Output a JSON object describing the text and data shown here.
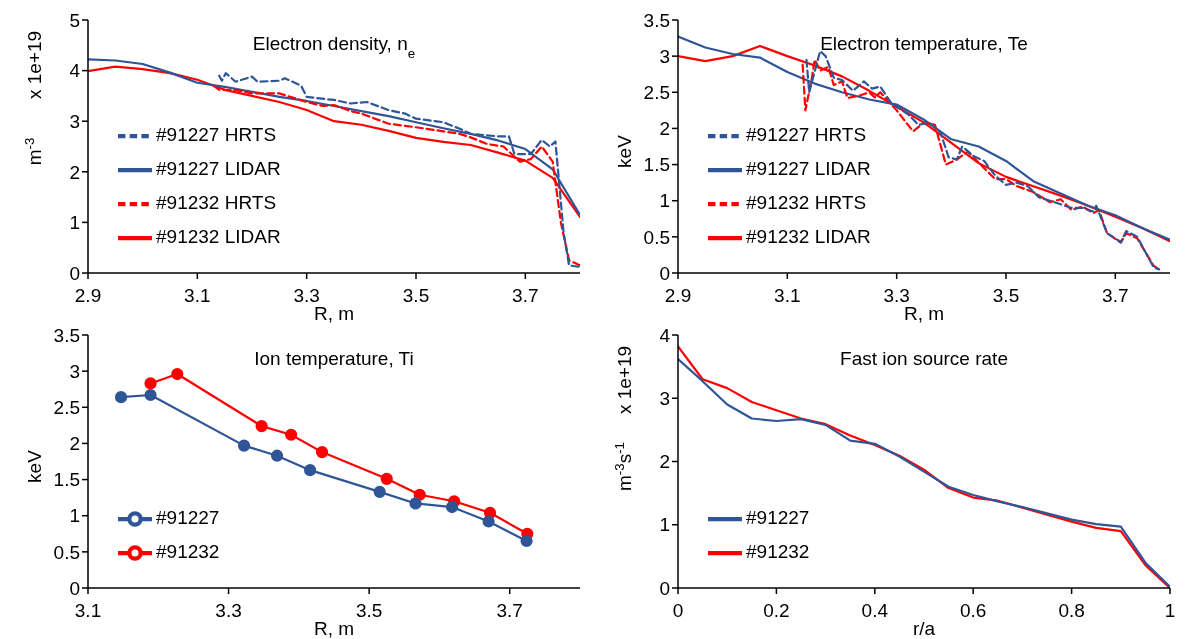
{
  "chart_data": [
    {
      "type": "line",
      "title": "Electron density, n$_{e}$",
      "xlabel": "R, m",
      "ylabel": "m$^{-3}$",
      "annotations": [
        "x 1e+19"
      ],
      "xlim": [
        2.9,
        3.8
      ],
      "xticks": [
        2.9,
        3.1,
        3.3,
        3.5,
        3.7
      ],
      "ylim": [
        0,
        5
      ],
      "yticks": [
        0,
        1,
        2,
        3,
        4,
        5
      ],
      "legend": "bottom left",
      "series": [
        {
          "name": "#91232 LIDAR",
          "color": "#ff0000",
          "line_style": "solid",
          "x": [
            2.9,
            2.95,
            3.0,
            3.05,
            3.1,
            3.15,
            3.2,
            3.25,
            3.3,
            3.35,
            3.4,
            3.45,
            3.5,
            3.55,
            3.6,
            3.65,
            3.7,
            3.75,
            3.8
          ],
          "values": [
            3.99,
            4.08,
            4.03,
            3.95,
            3.82,
            3.62,
            3.5,
            3.38,
            3.22,
            3.0,
            2.93,
            2.81,
            2.67,
            2.59,
            2.53,
            2.38,
            2.22,
            1.88,
            1.11
          ]
        },
        {
          "name": "#91227 LIDAR",
          "color": "#2f5597",
          "line_style": "solid",
          "x": [
            2.9,
            2.95,
            3.0,
            3.05,
            3.1,
            3.15,
            3.2,
            3.25,
            3.3,
            3.35,
            3.4,
            3.45,
            3.5,
            3.55,
            3.6,
            3.65,
            3.7,
            3.75,
            3.8
          ],
          "values": [
            4.22,
            4.2,
            4.13,
            3.96,
            3.76,
            3.68,
            3.58,
            3.48,
            3.4,
            3.3,
            3.2,
            3.1,
            2.98,
            2.86,
            2.75,
            2.62,
            2.45,
            2.05,
            1.15
          ]
        },
        {
          "name": "#91232 HRTS",
          "color": "#ff0000",
          "line_style": "dashed",
          "x": [
            3.13,
            3.14,
            3.17,
            3.2,
            3.25,
            3.3,
            3.33,
            3.35,
            3.38,
            3.4,
            3.45,
            3.5,
            3.55,
            3.58,
            3.6,
            3.63,
            3.66,
            3.69,
            3.71,
            3.73,
            3.75,
            3.765,
            3.78,
            3.8
          ],
          "values": [
            3.7,
            3.62,
            3.62,
            3.55,
            3.55,
            3.38,
            3.3,
            3.32,
            3.2,
            3.15,
            2.95,
            2.88,
            2.8,
            2.75,
            2.68,
            2.55,
            2.5,
            2.2,
            2.25,
            2.5,
            2.2,
            1.0,
            0.25,
            0.15
          ]
        },
        {
          "name": "#91227 HRTS",
          "color": "#2f5597",
          "line_style": "dashed",
          "x": [
            3.14,
            3.145,
            3.152,
            3.17,
            3.2,
            3.21,
            3.25,
            3.26,
            3.29,
            3.3,
            3.35,
            3.38,
            3.41,
            3.45,
            3.48,
            3.5,
            3.55,
            3.58,
            3.6,
            3.65,
            3.67,
            3.68,
            3.71,
            3.73,
            3.745,
            3.755,
            3.77,
            3.78,
            3.8
          ],
          "values": [
            3.9,
            3.8,
            3.95,
            3.78,
            3.88,
            3.78,
            3.8,
            3.85,
            3.7,
            3.48,
            3.42,
            3.35,
            3.38,
            3.22,
            3.15,
            3.05,
            2.98,
            2.85,
            2.75,
            2.7,
            2.7,
            2.35,
            2.35,
            2.63,
            2.5,
            2.6,
            0.8,
            0.15,
            0.12
          ]
        }
      ]
    },
    {
      "type": "line",
      "title": "Electron temperature, Te",
      "xlabel": "R, m",
      "ylabel": "keV",
      "xlim": [
        2.9,
        3.8
      ],
      "xticks": [
        2.9,
        3.1,
        3.3,
        3.5,
        3.7
      ],
      "ylim": [
        0,
        3.5
      ],
      "yticks": [
        0,
        0.5,
        1,
        1.5,
        2,
        2.5,
        3,
        3.5
      ],
      "legend": "bottom left",
      "series": [
        {
          "name": "#91232 LIDAR",
          "color": "#ff0000",
          "line_style": "solid",
          "x": [
            2.9,
            2.95,
            3.0,
            3.05,
            3.1,
            3.15,
            3.2,
            3.25,
            3.3,
            3.35,
            3.4,
            3.45,
            3.5,
            3.55,
            3.6,
            3.65,
            3.7,
            3.75,
            3.8
          ],
          "values": [
            3.0,
            2.93,
            3.0,
            3.14,
            3.0,
            2.87,
            2.72,
            2.52,
            2.3,
            2.08,
            1.8,
            1.52,
            1.33,
            1.2,
            1.07,
            0.93,
            0.78,
            0.62,
            0.44
          ]
        },
        {
          "name": "#91227 LIDAR",
          "color": "#2f5597",
          "line_style": "solid",
          "x": [
            2.9,
            2.95,
            3.0,
            3.05,
            3.1,
            3.15,
            3.2,
            3.25,
            3.3,
            3.35,
            3.4,
            3.45,
            3.5,
            3.55,
            3.6,
            3.65,
            3.7,
            3.75,
            3.8
          ],
          "values": [
            3.27,
            3.12,
            3.03,
            2.98,
            2.78,
            2.62,
            2.5,
            2.4,
            2.33,
            2.12,
            1.85,
            1.75,
            1.55,
            1.27,
            1.1,
            0.93,
            0.8,
            0.62,
            0.46
          ]
        },
        {
          "name": "#91232 HRTS",
          "color": "#ff0000",
          "line_style": "dashed",
          "x": [
            3.128,
            3.133,
            3.145,
            3.15,
            3.16,
            3.175,
            3.185,
            3.2,
            3.21,
            3.23,
            3.25,
            3.26,
            3.27,
            3.3,
            3.33,
            3.35,
            3.37,
            3.39,
            3.41,
            3.43,
            3.46,
            3.48,
            3.5,
            3.52,
            3.55,
            3.58,
            3.6,
            3.62,
            3.64,
            3.66,
            3.67,
            3.685,
            3.71,
            3.72,
            3.74,
            3.77,
            3.78
          ],
          "values": [
            2.88,
            2.25,
            2.7,
            2.95,
            2.8,
            2.85,
            2.6,
            2.65,
            2.42,
            2.45,
            2.5,
            2.43,
            2.5,
            2.25,
            1.96,
            2.08,
            2.05,
            1.5,
            1.57,
            1.68,
            1.45,
            1.3,
            1.3,
            1.2,
            1.12,
            0.98,
            1.02,
            0.87,
            0.92,
            0.83,
            0.87,
            0.55,
            0.42,
            0.55,
            0.48,
            0.1,
            0.05
          ]
        },
        {
          "name": "#91227 HRTS",
          "color": "#2f5597",
          "line_style": "dashed",
          "x": [
            3.135,
            3.14,
            3.16,
            3.17,
            3.185,
            3.2,
            3.22,
            3.24,
            3.255,
            3.27,
            3.29,
            3.32,
            3.34,
            3.36,
            3.38,
            3.395,
            3.41,
            3.42,
            3.44,
            3.46,
            3.48,
            3.5,
            3.52,
            3.54,
            3.56,
            3.58,
            3.6,
            3.62,
            3.64,
            3.66,
            3.665,
            3.685,
            3.71,
            3.72,
            3.74,
            3.77,
            3.78
          ],
          "values": [
            2.95,
            2.5,
            3.07,
            3.0,
            2.7,
            2.67,
            2.52,
            2.65,
            2.55,
            2.58,
            2.35,
            2.2,
            2.05,
            2.08,
            1.95,
            1.6,
            1.57,
            1.75,
            1.62,
            1.55,
            1.35,
            1.22,
            1.25,
            1.2,
            1.05,
            1.0,
            0.95,
            0.9,
            0.9,
            0.85,
            0.93,
            0.55,
            0.43,
            0.58,
            0.5,
            0.08,
            0.05
          ]
        }
      ]
    },
    {
      "type": "line",
      "title": "Ion temperature, Ti",
      "xlabel": "R, m",
      "ylabel": "keV",
      "xlim": [
        3.1,
        3.8
      ],
      "xticks": [
        3.1,
        3.3,
        3.5,
        3.7
      ],
      "ylim": [
        0,
        3.5
      ],
      "yticks": [
        0,
        0.5,
        1,
        1.5,
        2,
        2.5,
        3,
        3.5
      ],
      "legend": "bottom left",
      "marker": "circle",
      "series": [
        {
          "name": "#91232",
          "color": "#ff0000",
          "x": [
            3.189,
            3.227,
            3.347,
            3.389,
            3.433,
            3.525,
            3.572,
            3.621,
            3.672,
            3.725
          ],
          "values": [
            2.83,
            2.96,
            2.24,
            2.12,
            1.88,
            1.51,
            1.29,
            1.2,
            1.04,
            0.75
          ]
        },
        {
          "name": "#91227",
          "color": "#2f5597",
          "x": [
            3.147,
            3.189,
            3.322,
            3.369,
            3.416,
            3.515,
            3.566,
            3.618,
            3.67,
            3.724
          ],
          "values": [
            2.64,
            2.67,
            1.97,
            1.83,
            1.63,
            1.33,
            1.17,
            1.12,
            0.92,
            0.65
          ]
        }
      ]
    },
    {
      "type": "line",
      "title": "Fast ion source rate",
      "xlabel": "r/a",
      "ylabel": "m$^{-3}$s$^{-1}$",
      "annotations": [
        "x 1e+19"
      ],
      "xlim": [
        0,
        1
      ],
      "xticks": [
        0,
        0.2,
        0.4,
        0.6,
        0.8,
        1
      ],
      "ylim": [
        0,
        4
      ],
      "yticks": [
        0,
        1,
        2,
        3,
        4
      ],
      "legend": "bottom left",
      "series": [
        {
          "name": "#91232",
          "color": "#ff0000",
          "x": [
            0,
            0.05,
            0.1,
            0.15,
            0.2,
            0.25,
            0.3,
            0.35,
            0.4,
            0.45,
            0.5,
            0.55,
            0.6,
            0.65,
            0.7,
            0.75,
            0.8,
            0.85,
            0.9,
            0.95,
            1
          ],
          "values": [
            3.82,
            3.3,
            3.16,
            2.94,
            2.81,
            2.68,
            2.59,
            2.41,
            2.26,
            2.09,
            1.87,
            1.58,
            1.43,
            1.38,
            1.27,
            1.16,
            1.05,
            0.95,
            0.9,
            0.36,
            0
          ]
        },
        {
          "name": "#91227",
          "color": "#2f5597",
          "x": [
            0,
            0.05,
            0.1,
            0.15,
            0.2,
            0.25,
            0.3,
            0.35,
            0.4,
            0.45,
            0.5,
            0.55,
            0.6,
            0.65,
            0.7,
            0.75,
            0.8,
            0.85,
            0.9,
            0.95,
            1
          ],
          "values": [
            3.62,
            3.27,
            2.9,
            2.68,
            2.64,
            2.67,
            2.58,
            2.33,
            2.28,
            2.08,
            1.84,
            1.6,
            1.47,
            1.37,
            1.28,
            1.18,
            1.08,
            1.01,
            0.97,
            0.4,
            0.02
          ]
        }
      ]
    }
  ]
}
